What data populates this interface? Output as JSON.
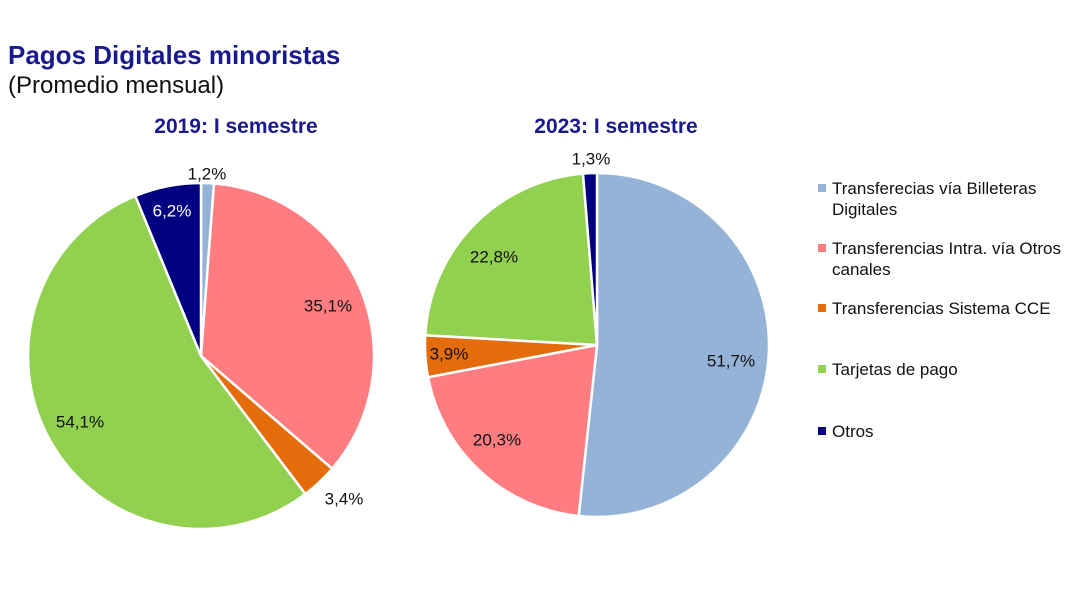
{
  "header": {
    "title": "Pagos Digitales minoristas",
    "subtitle": "(Promedio mensual)"
  },
  "colors": {
    "billeteras": "#95b3d7",
    "otros_canales": "#ff7c80",
    "cce": "#e46c0a",
    "tarjetas": "#92d050",
    "otros": "#000080"
  },
  "legend": {
    "items": [
      {
        "label": "Transferecias vía Billeteras Digitales",
        "color": "#95b3d7"
      },
      {
        "label": "Transferencias Intra. vía Otros canales",
        "color": "#ff7c80"
      },
      {
        "label": "Transferencias Sistema CCE",
        "color": "#e46c0a"
      },
      {
        "label": "Tarjetas de pago",
        "color": "#92d050"
      },
      {
        "label": "Otros",
        "color": "#000080"
      }
    ]
  },
  "chart_data": [
    {
      "type": "pie",
      "title": "2019: I semestre",
      "legend_position": "right",
      "slices": [
        {
          "name": "Transferecias vía Billeteras Digitales",
          "value": 1.2,
          "label": "1,2%",
          "color": "#95b3d7"
        },
        {
          "name": "Transferencias Intra. vía Otros canales",
          "value": 35.1,
          "label": "35,1%",
          "color": "#ff7c80"
        },
        {
          "name": "Transferencias Sistema CCE",
          "value": 3.4,
          "label": "3,4%",
          "color": "#e46c0a"
        },
        {
          "name": "Tarjetas de pago",
          "value": 54.1,
          "label": "54,1%",
          "color": "#92d050"
        },
        {
          "name": "Otros",
          "value": 6.2,
          "label": "6,2%",
          "color": "#000080"
        }
      ]
    },
    {
      "type": "pie",
      "title": "2023: I semestre",
      "legend_position": "right",
      "slices": [
        {
          "name": "Transferecias vía Billeteras Digitales",
          "value": 51.7,
          "label": "51,7%",
          "color": "#95b3d7"
        },
        {
          "name": "Transferencias Intra. vía Otros canales",
          "value": 20.3,
          "label": "20,3%",
          "color": "#ff7c80"
        },
        {
          "name": "Transferencias Sistema CCE",
          "value": 3.9,
          "label": "3,9%",
          "color": "#e46c0a"
        },
        {
          "name": "Tarjetas de pago",
          "value": 22.8,
          "label": "22,8%",
          "color": "#92d050"
        },
        {
          "name": "Otros",
          "value": 1.3,
          "label": "1,3%",
          "color": "#000080"
        }
      ]
    }
  ]
}
